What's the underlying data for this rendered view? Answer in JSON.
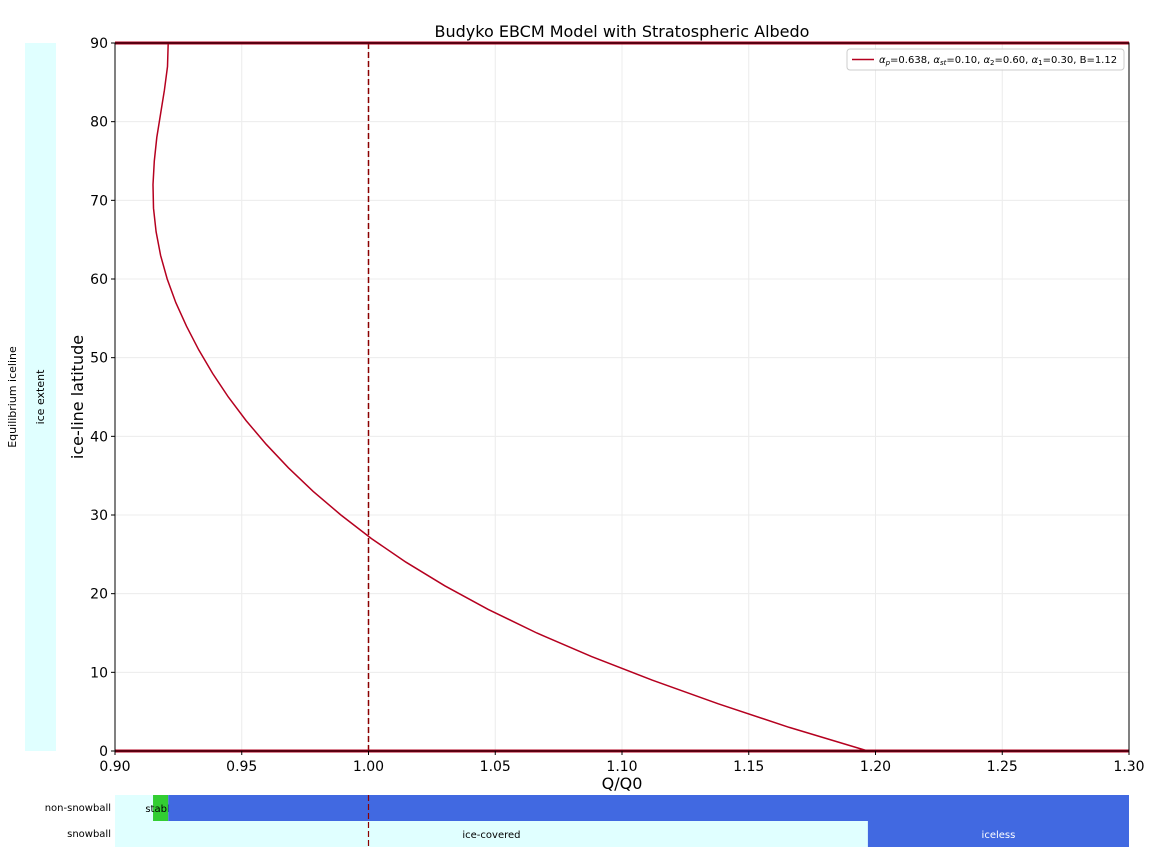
{
  "colors": {
    "curve": "#b5001f",
    "refline": "#8b0000",
    "ice": "#e0ffff",
    "blue": "#4169e1",
    "green": "#32cd32",
    "grid": "#ececec"
  },
  "chart_data": {
    "type": "line",
    "title": "Budyko EBCM Model with Stratospheric Albedo",
    "xlabel": "Q/Q0",
    "ylabel": "ice-line latitude",
    "xlim": [
      0.9,
      1.3
    ],
    "ylim": [
      0,
      90
    ],
    "x_ticks": [
      "0.90",
      "0.95",
      "1.00",
      "1.05",
      "1.10",
      "1.15",
      "1.20",
      "1.25",
      "1.30"
    ],
    "y_ticks": [
      "0",
      "10",
      "20",
      "30",
      "40",
      "50",
      "60",
      "70",
      "80",
      "90"
    ],
    "grid": true,
    "legend_position": "top-right",
    "legend": {
      "prefix": "α",
      "p_sub": "p",
      "p_val": "=0.638, ",
      "st_sub": "st",
      "st_val": "=0.10, ",
      "two_sub": "2",
      "two_val": "=0.60, ",
      "one_sub": "1",
      "one_val": "=0.30, B=1.12"
    },
    "reference_line_x": 1.0,
    "series": [
      {
        "x": [
          0.921,
          0.9207,
          0.9195,
          0.918,
          0.9165,
          0.9155,
          0.915,
          0.9152,
          0.9162,
          0.918,
          0.9206,
          0.924,
          0.9282,
          0.933,
          0.9385,
          0.9447,
          0.9517,
          0.9596,
          0.9684,
          0.9782,
          0.9891,
          1.0012,
          1.0148,
          1.0301,
          1.0472,
          1.0664,
          1.088,
          1.112,
          1.138,
          1.166,
          1.197
        ],
        "y": [
          90,
          87,
          84,
          81,
          78,
          75,
          72,
          69,
          66,
          63,
          60,
          57,
          54,
          51,
          48,
          45,
          42,
          39,
          36,
          33,
          30,
          27,
          24,
          21,
          18,
          15,
          12,
          9,
          6,
          3,
          0
        ]
      }
    ],
    "boundary_lines_y": [
      0,
      90
    ],
    "side_panel": {
      "title": "Equilibrium iceline",
      "label": "ice extent"
    },
    "state_rows": [
      {
        "name": "non-snowball",
        "segments": [
          {
            "x_start": 0.9,
            "x_end": 0.915,
            "color_key": "ice",
            "label": ""
          },
          {
            "x_start": 0.915,
            "x_end": 0.921,
            "color_key": "green",
            "label": "stable"
          },
          {
            "x_start": 0.921,
            "x_end": 1.3,
            "color_key": "blue",
            "label": ""
          }
        ]
      },
      {
        "name": "snowball",
        "segments": [
          {
            "x_start": 0.9,
            "x_end": 1.197,
            "color_key": "ice",
            "label": "ice-covered"
          },
          {
            "x_start": 1.197,
            "x_end": 1.3,
            "color_key": "blue",
            "label": "iceless"
          }
        ]
      }
    ]
  }
}
